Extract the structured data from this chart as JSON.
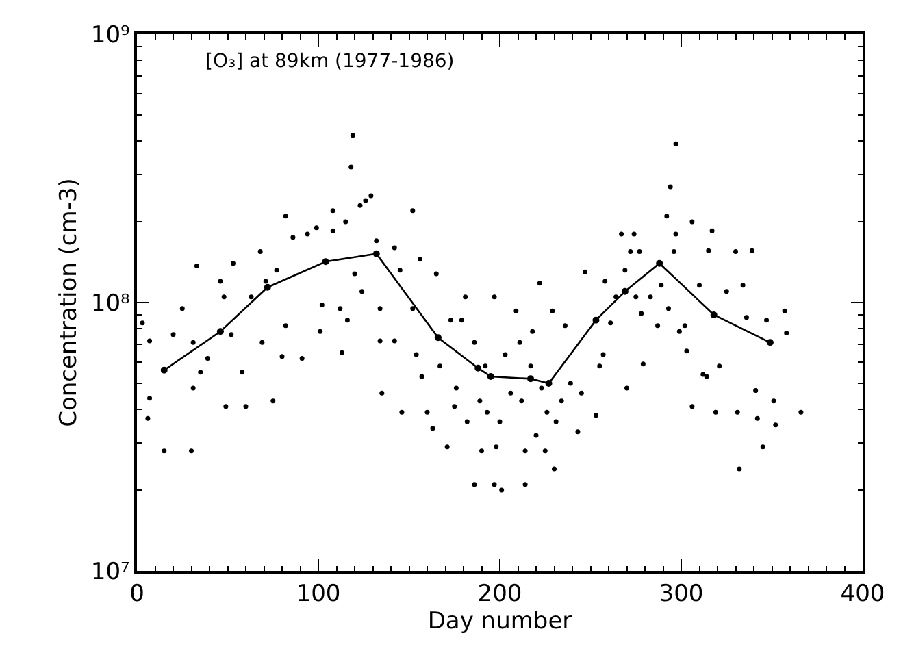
{
  "chart_data": {
    "type": "scatter",
    "xlabel": "Day number",
    "ylabel": "Concentration (cm-3)",
    "annotations": [
      "[O₃] at 89km (1977-1986)"
    ],
    "xlim": [
      0,
      400
    ],
    "xticks": [
      0,
      100,
      200,
      300,
      400
    ],
    "ylim": [
      10000000.0,
      1000000000.0
    ],
    "yticks": [
      {
        "value": 10000000.0,
        "label": "10⁷"
      },
      {
        "value": 100000000.0,
        "label": "10⁸"
      },
      {
        "value": 1000000000.0,
        "label": "10⁹"
      }
    ],
    "log": "y",
    "series": [
      {
        "marker": "circle",
        "color": "#000000",
        "x": [
          3,
          7,
          6,
          7,
          15,
          20,
          25,
          30,
          31,
          33,
          31,
          35,
          39,
          46,
          48,
          49,
          52,
          53,
          58,
          60,
          63,
          68,
          69,
          71,
          75,
          77,
          80,
          82,
          82,
          86,
          91,
          94,
          99,
          102,
          101,
          108,
          108,
          112,
          113,
          115,
          116,
          118,
          119,
          120,
          123,
          126,
          129,
          124,
          132,
          134,
          135,
          134,
          142,
          142,
          145,
          146,
          152,
          152,
          154,
          156,
          157,
          160,
          163,
          165,
          167,
          171,
          173,
          175,
          176,
          179,
          181,
          182,
          186,
          186,
          189,
          190,
          192,
          193,
          197,
          197,
          198,
          200,
          201,
          203,
          206,
          209,
          211,
          212,
          214,
          214,
          217,
          218,
          220,
          222,
          223,
          225,
          226,
          229,
          230,
          231,
          234,
          236,
          239,
          243,
          245,
          247,
          253,
          255,
          257,
          258,
          261,
          264,
          267,
          269,
          270,
          272,
          274,
          275,
          277,
          278,
          279,
          283,
          287,
          289,
          292,
          293,
          294,
          296,
          297,
          297,
          299,
          302,
          303,
          306,
          306,
          310,
          312,
          314,
          315,
          317,
          319,
          321,
          325,
          330,
          331,
          332,
          334,
          336,
          339,
          341,
          342,
          345,
          347,
          351,
          352,
          357,
          358,
          366
        ],
        "values": [
          84000000.0,
          72000000.0,
          37000000.0,
          44000000.0,
          28000000.0,
          76000000.0,
          95000000.0,
          28000000.0,
          48000000.0,
          137000000.0,
          71000000.0,
          55000000.0,
          62000000.0,
          120000000.0,
          105000000.0,
          41000000.0,
          76000000.0,
          140000000.0,
          55000000.0,
          41000000.0,
          105000000.0,
          155000000.0,
          71000000.0,
          120000000.0,
          43000000.0,
          132000000.0,
          63000000.0,
          210000000.0,
          82000000.0,
          175000000.0,
          62000000.0,
          180000000.0,
          190000000.0,
          98000000.0,
          78000000.0,
          220000000.0,
          185000000.0,
          95000000.0,
          65000000.0,
          200000000.0,
          86000000.0,
          320000000.0,
          420000000.0,
          128000000.0,
          230000000.0,
          240000000.0,
          250000000.0,
          110000000.0,
          170000000.0,
          95000000.0,
          46000000.0,
          72000000.0,
          72000000.0,
          160000000.0,
          132000000.0,
          39000000.0,
          220000000.0,
          95000000.0,
          64000000.0,
          145000000.0,
          53000000.0,
          39000000.0,
          34000000.0,
          128000000.0,
          58000000.0,
          29000000.0,
          86000000.0,
          41000000.0,
          48000000.0,
          86000000.0,
          105000000.0,
          36000000.0,
          21000000.0,
          71000000.0,
          43000000.0,
          28000000.0,
          58000000.0,
          39000000.0,
          21000000.0,
          105000000.0,
          29000000.0,
          36000000.0,
          20000000.0,
          64000000.0,
          46000000.0,
          93000000.0,
          71000000.0,
          43000000.0,
          21000000.0,
          28000000.0,
          58000000.0,
          78000000.0,
          32000000.0,
          118000000.0,
          48000000.0,
          28000000.0,
          39000000.0,
          93000000.0,
          24000000.0,
          36000000.0,
          43000000.0,
          82000000.0,
          50000000.0,
          33000000.0,
          46000000.0,
          130000000.0,
          38000000.0,
          58000000.0,
          64000000.0,
          120000000.0,
          84000000.0,
          105000000.0,
          180000000.0,
          132000000.0,
          48000000.0,
          155000000.0,
          180000000.0,
          105000000.0,
          155000000.0,
          91000000.0,
          59000000.0,
          105000000.0,
          82000000.0,
          116000000.0,
          210000000.0,
          95000000.0,
          270000000.0,
          155000000.0,
          390000000.0,
          180000000.0,
          78000000.0,
          82000000.0,
          66000000.0,
          41000000.0,
          200000000.0,
          116000000.0,
          54000000.0,
          53000000.0,
          156000000.0,
          185000000.0,
          39000000.0,
          58000000.0,
          110000000.0,
          155000000.0,
          39000000.0,
          24000000.0,
          116000000.0,
          88000000.0,
          156000000.0,
          47000000.0,
          37000000.0,
          29000000.0,
          86000000.0,
          43000000.0,
          35000000.0,
          93000000.0,
          77000000.0,
          39000000.0
        ]
      },
      {
        "type": "line",
        "marker": "circle",
        "line_style": "solid",
        "color": "#000000",
        "x": [
          15,
          46,
          72,
          104,
          132,
          166,
          188,
          195,
          217,
          227,
          253,
          269,
          288,
          318,
          349
        ],
        "values": [
          56000000.0,
          78000000.0,
          114000000.0,
          142000000.0,
          152000000.0,
          74000000.0,
          57000000.0,
          53000000.0,
          52000000.0,
          50000000.0,
          86000000.0,
          110000000.0,
          140000000.0,
          90000000.0,
          71000000.0
        ]
      }
    ]
  }
}
